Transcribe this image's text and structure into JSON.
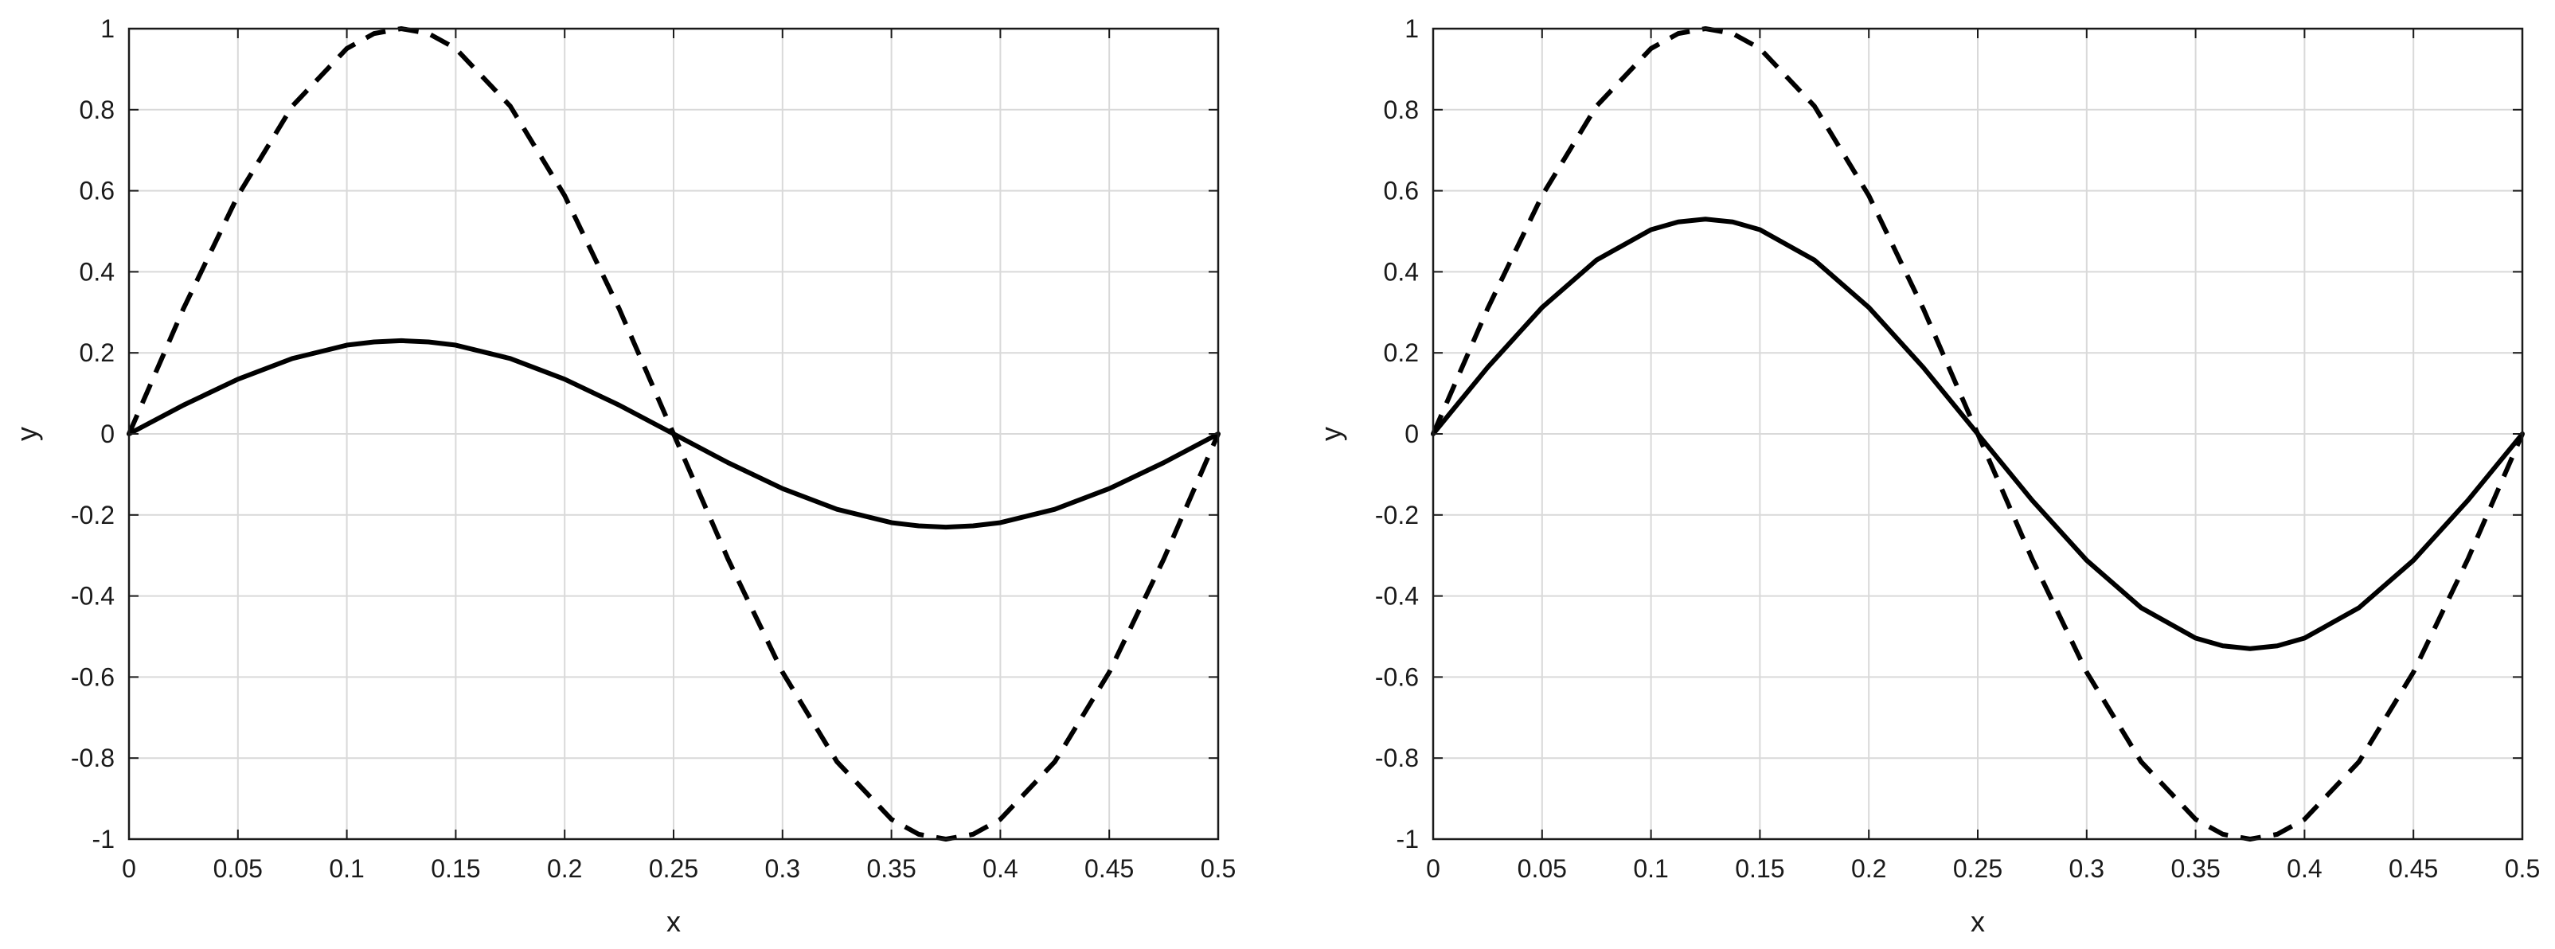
{
  "chart_data": [
    {
      "type": "line",
      "title": "",
      "xlabel": "x",
      "ylabel": "y",
      "xlim": [
        0,
        0.5
      ],
      "ylim": [
        -1,
        1
      ],
      "grid": true,
      "x_ticks": [
        "0",
        "0.05",
        "0.1",
        "0.15",
        "0.2",
        "0.25",
        "0.3",
        "0.35",
        "0.4",
        "0.45",
        "0.5"
      ],
      "y_ticks": [
        "-1",
        "-0.8",
        "-0.6",
        "-0.4",
        "-0.2",
        "0",
        "0.2",
        "0.4",
        "0.6",
        "0.8",
        "1"
      ],
      "x_tick_values": [
        0,
        0.05,
        0.1,
        0.15,
        0.2,
        0.25,
        0.3,
        0.35,
        0.4,
        0.45,
        0.5
      ],
      "y_tick_values": [
        -1,
        -0.8,
        -0.6,
        -0.4,
        -0.2,
        0,
        0.2,
        0.4,
        0.6,
        0.8,
        1
      ],
      "series": [
        {
          "name": "solid",
          "style": "solid",
          "x": [
            0,
            0.025,
            0.05,
            0.075,
            0.1,
            0.1125,
            0.125,
            0.1375,
            0.15,
            0.175,
            0.2,
            0.225,
            0.25,
            0.275,
            0.3,
            0.325,
            0.35,
            0.3625,
            0.375,
            0.3875,
            0.4,
            0.425,
            0.45,
            0.475,
            0.5
          ],
          "values": [
            0,
            0.071,
            0.135,
            0.186,
            0.219,
            0.227,
            0.23,
            0.227,
            0.219,
            0.186,
            0.135,
            0.071,
            0,
            -0.071,
            -0.135,
            -0.186,
            -0.219,
            -0.227,
            -0.23,
            -0.227,
            -0.219,
            -0.186,
            -0.135,
            -0.071,
            0
          ]
        },
        {
          "name": "dashed",
          "style": "dashed",
          "x": [
            0,
            0.025,
            0.05,
            0.075,
            0.1,
            0.1125,
            0.125,
            0.1375,
            0.15,
            0.175,
            0.2,
            0.225,
            0.25,
            0.275,
            0.3,
            0.325,
            0.35,
            0.3625,
            0.375,
            0.3875,
            0.4,
            0.425,
            0.45,
            0.475,
            0.5
          ],
          "values": [
            0,
            0.309,
            0.588,
            0.809,
            0.951,
            0.988,
            1,
            0.988,
            0.951,
            0.809,
            0.588,
            0.309,
            0,
            -0.309,
            -0.588,
            -0.809,
            -0.951,
            -0.988,
            -1,
            -0.988,
            -0.951,
            -0.809,
            -0.588,
            -0.309,
            0
          ]
        }
      ]
    },
    {
      "type": "line",
      "title": "",
      "xlabel": "x",
      "ylabel": "y",
      "xlim": [
        0,
        0.5
      ],
      "ylim": [
        -1,
        1
      ],
      "grid": true,
      "x_ticks": [
        "0",
        "0.05",
        "0.1",
        "0.15",
        "0.2",
        "0.25",
        "0.3",
        "0.35",
        "0.4",
        "0.45",
        "0.5"
      ],
      "y_ticks": [
        "-1",
        "-0.8",
        "-0.6",
        "-0.4",
        "-0.2",
        "0",
        "0.2",
        "0.4",
        "0.6",
        "0.8",
        "1"
      ],
      "x_tick_values": [
        0,
        0.05,
        0.1,
        0.15,
        0.2,
        0.25,
        0.3,
        0.35,
        0.4,
        0.45,
        0.5
      ],
      "y_tick_values": [
        -1,
        -0.8,
        -0.6,
        -0.4,
        -0.2,
        0,
        0.2,
        0.4,
        0.6,
        0.8,
        1
      ],
      "series": [
        {
          "name": "solid",
          "style": "solid",
          "x": [
            0,
            0.025,
            0.05,
            0.075,
            0.1,
            0.1125,
            0.125,
            0.1375,
            0.15,
            0.175,
            0.2,
            0.225,
            0.25,
            0.275,
            0.3,
            0.325,
            0.35,
            0.3625,
            0.375,
            0.3875,
            0.4,
            0.425,
            0.45,
            0.475,
            0.5
          ],
          "values": [
            0,
            0.164,
            0.312,
            0.429,
            0.504,
            0.523,
            0.53,
            0.523,
            0.504,
            0.429,
            0.312,
            0.164,
            0,
            -0.164,
            -0.312,
            -0.429,
            -0.504,
            -0.523,
            -0.53,
            -0.523,
            -0.504,
            -0.429,
            -0.312,
            -0.164,
            0
          ]
        },
        {
          "name": "dashed",
          "style": "dashed",
          "x": [
            0,
            0.025,
            0.05,
            0.075,
            0.1,
            0.1125,
            0.125,
            0.1375,
            0.15,
            0.175,
            0.2,
            0.225,
            0.25,
            0.275,
            0.3,
            0.325,
            0.35,
            0.3625,
            0.375,
            0.3875,
            0.4,
            0.425,
            0.45,
            0.475,
            0.5
          ],
          "values": [
            0,
            0.309,
            0.588,
            0.809,
            0.951,
            0.988,
            1,
            0.988,
            0.951,
            0.809,
            0.588,
            0.309,
            0,
            -0.309,
            -0.588,
            -0.809,
            -0.951,
            -0.988,
            -1,
            -0.988,
            -0.951,
            -0.809,
            -0.588,
            -0.309,
            0
          ]
        }
      ]
    }
  ]
}
